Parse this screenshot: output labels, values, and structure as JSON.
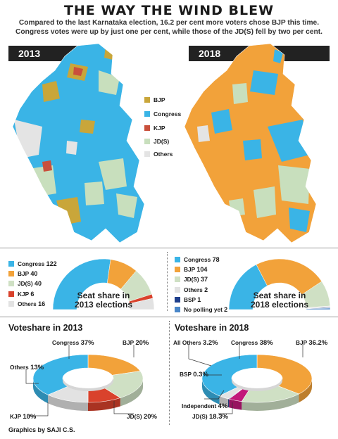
{
  "header": {
    "title": "THE WAY THE WIND BLEW",
    "subtitle_line1": "Compared to the last Karnataka election, 16.2 per cent more voters chose BJP this time.",
    "subtitle_line2": "Congress votes were up by just one per cent, while those of the JD(S) fell by two per cent."
  },
  "maps": {
    "year_2013": "2013",
    "year_2018": "2018",
    "legend": [
      {
        "label": "BJP",
        "color": "#c9a63a"
      },
      {
        "label": "Congress",
        "color": "#3ab4e6"
      },
      {
        "label": "KJP",
        "color": "#c9503c"
      },
      {
        "label": "JD(S)",
        "color": "#c8dfbd"
      },
      {
        "label": "Others",
        "color": "#e4e4e4"
      }
    ]
  },
  "colors": {
    "congress": "#3ab4e6",
    "bjp": "#f2a23a",
    "jds": "#cfe0c4",
    "kjp": "#d9422c",
    "others": "#e2e2e2",
    "bsp": "#1f3f8c",
    "no_polling": "#4a86c8"
  },
  "seat_2013": {
    "caption_line1": "Seat share in",
    "caption_line2": "2013 elections",
    "legend": [
      {
        "name": "Congress",
        "value": "122"
      },
      {
        "name": "BJP",
        "value": "40"
      },
      {
        "name": "JD(S)",
        "value": "40"
      },
      {
        "name": "KJP",
        "value": "6"
      },
      {
        "name": "Others",
        "value": "16"
      }
    ]
  },
  "seat_2018": {
    "caption_line1": "Seat share in",
    "caption_line2": "2018 elections",
    "legend": [
      {
        "name": "Congress",
        "value": "78"
      },
      {
        "name": "BJP",
        "value": "104"
      },
      {
        "name": "JD(S)",
        "value": "37"
      },
      {
        "name": "Others",
        "value": "2"
      },
      {
        "name": "BSP",
        "value": "1"
      },
      {
        "name": "No polling yet",
        "value": "2"
      }
    ]
  },
  "vote_2013": {
    "title": "Voteshare in 2013",
    "labels": [
      {
        "name": "Congress",
        "value": "37%"
      },
      {
        "name": "BJP",
        "value": "20%"
      },
      {
        "name": "Others",
        "value": "13%"
      },
      {
        "name": "KJP",
        "value": "10%"
      },
      {
        "name": "JD(S)",
        "value": "20%"
      }
    ]
  },
  "vote_2018": {
    "title": "Voteshare in 2018",
    "labels": [
      {
        "name": "All Others",
        "value": "3.2%"
      },
      {
        "name": "Congress",
        "value": "38%"
      },
      {
        "name": "BJP",
        "value": "36.2%"
      },
      {
        "name": "BSP",
        "value": "0.3%"
      },
      {
        "name": "Independent",
        "value": "4%"
      },
      {
        "name": "JD(S)",
        "value": "18.3%"
      }
    ]
  },
  "footer": {
    "credit_prefix": "Graphics by",
    "credit_name": "SAJI C.S."
  },
  "chart_data": [
    {
      "type": "pie",
      "title": "Seat share in 2013 elections",
      "categories": [
        "Congress",
        "BJP",
        "JD(S)",
        "KJP",
        "Others"
      ],
      "values": [
        122,
        40,
        40,
        6,
        16
      ]
    },
    {
      "type": "pie",
      "title": "Seat share in 2018 elections",
      "categories": [
        "Congress",
        "BJP",
        "JD(S)",
        "Others",
        "BSP",
        "No polling yet"
      ],
      "values": [
        78,
        104,
        37,
        2,
        1,
        2
      ]
    },
    {
      "type": "pie",
      "title": "Voteshare in 2013",
      "categories": [
        "Congress",
        "BJP",
        "JD(S)",
        "KJP",
        "Others"
      ],
      "values": [
        37,
        20,
        20,
        10,
        13
      ]
    },
    {
      "type": "pie",
      "title": "Voteshare in 2018",
      "categories": [
        "Congress",
        "BJP",
        "JD(S)",
        "Independent",
        "BSP",
        "All Others"
      ],
      "values": [
        38,
        36.2,
        18.3,
        4,
        0.3,
        3.2
      ]
    }
  ]
}
